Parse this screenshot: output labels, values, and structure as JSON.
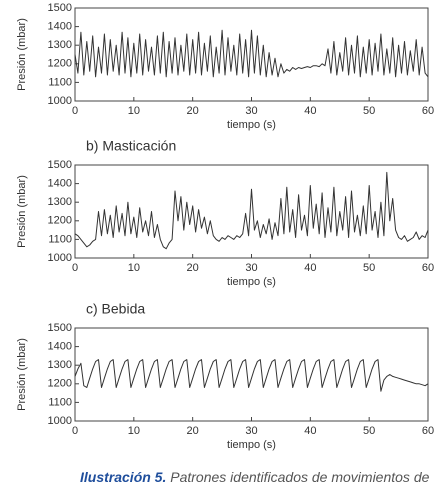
{
  "chart_data": [
    {
      "type": "line",
      "xlabel": "tiempo (s)",
      "ylabel": "Presión (mbar)",
      "color": "#333333",
      "xlim": [
        0,
        60
      ],
      "ylim": [
        1000,
        1500
      ],
      "xticks": [
        0,
        10,
        20,
        30,
        40,
        50,
        60
      ],
      "yticks": [
        1000,
        1100,
        1200,
        1300,
        1400,
        1500
      ],
      "x": [
        0,
        0.5,
        1,
        1.5,
        2,
        2.5,
        3,
        3.5,
        4,
        4.5,
        5,
        5.5,
        6,
        6.5,
        7,
        7.5,
        8,
        8.5,
        9,
        9.5,
        10,
        10.5,
        11,
        11.5,
        12,
        12.5,
        13,
        13.5,
        14,
        14.5,
        15,
        15.5,
        16,
        16.5,
        17,
        17.5,
        18,
        18.5,
        19,
        19.5,
        20,
        20.5,
        21,
        21.5,
        22,
        22.5,
        23,
        23.5,
        24,
        24.5,
        25,
        25.5,
        26,
        26.5,
        27,
        27.5,
        28,
        28.5,
        29,
        29.5,
        30,
        30.5,
        31,
        31.5,
        32,
        32.5,
        33,
        33.5,
        34,
        34.5,
        35,
        35.5,
        36,
        36.5,
        37,
        37.5,
        38,
        38.5,
        39,
        39.5,
        40,
        40.5,
        41,
        41.5,
        42,
        42.5,
        43,
        43.5,
        44,
        44.5,
        45,
        45.5,
        46,
        46.5,
        47,
        47.5,
        48,
        48.5,
        49,
        49.5,
        50,
        50.5,
        51,
        51.5,
        52,
        52.5,
        53,
        53.5,
        54,
        54.5,
        55,
        55.5,
        56,
        56.5,
        57,
        57.5,
        58,
        58.5,
        59,
        59.5,
        60
      ],
      "values": [
        1250,
        1150,
        1370,
        1140,
        1320,
        1160,
        1350,
        1130,
        1290,
        1150,
        1360,
        1140,
        1330,
        1160,
        1300,
        1140,
        1370,
        1150,
        1340,
        1130,
        1310,
        1150,
        1360,
        1140,
        1330,
        1160,
        1290,
        1140,
        1350,
        1150,
        1370,
        1130,
        1320,
        1150,
        1340,
        1140,
        1300,
        1160,
        1360,
        1140,
        1330,
        1150,
        1370,
        1140,
        1310,
        1160,
        1350,
        1130,
        1290,
        1150,
        1380,
        1140,
        1340,
        1160,
        1300,
        1140,
        1360,
        1150,
        1330,
        1130,
        1380,
        1150,
        1350,
        1140,
        1300,
        1130,
        1260,
        1140,
        1230,
        1130,
        1200,
        1150,
        1170,
        1160,
        1180,
        1170,
        1180,
        1175,
        1180,
        1185,
        1180,
        1190,
        1190,
        1185,
        1200,
        1190,
        1280,
        1150,
        1320,
        1140,
        1260,
        1160,
        1340,
        1140,
        1300,
        1150,
        1350,
        1130,
        1290,
        1150,
        1330,
        1140,
        1310,
        1160,
        1360,
        1140,
        1280,
        1150,
        1340,
        1130,
        1300,
        1150,
        1320,
        1140,
        1270,
        1160,
        1330,
        1140,
        1290,
        1150,
        1130
      ]
    },
    {
      "type": "line",
      "title": "b) Masticación",
      "xlabel": "tiempo (s)",
      "ylabel": "Presión (mbar)",
      "color": "#333333",
      "xlim": [
        0,
        60
      ],
      "ylim": [
        1000,
        1500
      ],
      "xticks": [
        0,
        10,
        20,
        30,
        40,
        50,
        60
      ],
      "yticks": [
        1000,
        1100,
        1200,
        1300,
        1400,
        1500
      ],
      "x": [
        0,
        0.5,
        1,
        1.5,
        2,
        2.5,
        3,
        3.5,
        4,
        4.5,
        5,
        5.5,
        6,
        6.5,
        7,
        7.5,
        8,
        8.5,
        9,
        9.5,
        10,
        10.5,
        11,
        11.5,
        12,
        12.5,
        13,
        13.5,
        14,
        14.5,
        15,
        15.5,
        16,
        16.5,
        17,
        17.5,
        18,
        18.5,
        19,
        19.5,
        20,
        20.5,
        21,
        21.5,
        22,
        22.5,
        23,
        23.5,
        24,
        24.5,
        25,
        25.5,
        26,
        26.5,
        27,
        27.5,
        28,
        28.5,
        29,
        29.5,
        30,
        30.5,
        31,
        31.5,
        32,
        32.5,
        33,
        33.5,
        34,
        34.5,
        35,
        35.5,
        36,
        36.5,
        37,
        37.5,
        38,
        38.5,
        39,
        39.5,
        40,
        40.5,
        41,
        41.5,
        42,
        42.5,
        43,
        43.5,
        44,
        44.5,
        45,
        45.5,
        46,
        46.5,
        47,
        47.5,
        48,
        48.5,
        49,
        49.5,
        50,
        50.5,
        51,
        51.5,
        52,
        52.5,
        53,
        53.5,
        54,
        54.5,
        55,
        55.5,
        56,
        56.5,
        57,
        57.5,
        58,
        58.5,
        59,
        59.5,
        60
      ],
      "values": [
        1130,
        1120,
        1100,
        1080,
        1060,
        1070,
        1090,
        1100,
        1250,
        1120,
        1260,
        1130,
        1230,
        1110,
        1280,
        1140,
        1240,
        1120,
        1300,
        1130,
        1220,
        1110,
        1270,
        1140,
        1200,
        1120,
        1250,
        1110,
        1180,
        1100,
        1060,
        1050,
        1080,
        1100,
        1360,
        1200,
        1330,
        1150,
        1300,
        1180,
        1280,
        1140,
        1260,
        1160,
        1220,
        1130,
        1200,
        1120,
        1100,
        1090,
        1110,
        1100,
        1120,
        1110,
        1100,
        1120,
        1110,
        1130,
        1240,
        1120,
        1370,
        1150,
        1200,
        1110,
        1180,
        1130,
        1210,
        1100,
        1190,
        1120,
        1320,
        1130,
        1380,
        1140,
        1260,
        1110,
        1340,
        1150,
        1230,
        1120,
        1390,
        1160,
        1290,
        1130,
        1350,
        1110,
        1270,
        1140,
        1380,
        1120,
        1250,
        1150,
        1330,
        1110,
        1360,
        1140,
        1230,
        1120,
        1280,
        1130,
        1390,
        1150,
        1250,
        1110,
        1300,
        1120,
        1460,
        1200,
        1320,
        1150,
        1110,
        1100,
        1120,
        1090,
        1100,
        1110,
        1140,
        1100,
        1120,
        1110,
        1150
      ]
    },
    {
      "type": "line",
      "title": "c) Bebida",
      "xlabel": "tiempo (s)",
      "ylabel": "Presión (mbar)",
      "color": "#333333",
      "xlim": [
        0,
        60
      ],
      "ylim": [
        1000,
        1500
      ],
      "xticks": [
        0,
        10,
        20,
        30,
        40,
        50,
        60
      ],
      "yticks": [
        1000,
        1100,
        1200,
        1300,
        1400,
        1500
      ],
      "x": [
        0,
        0.5,
        1,
        1.5,
        2,
        2.5,
        3,
        3.5,
        4,
        4.5,
        5,
        5.5,
        6,
        6.5,
        7,
        7.5,
        8,
        8.5,
        9,
        9.5,
        10,
        10.5,
        11,
        11.5,
        12,
        12.5,
        13,
        13.5,
        14,
        14.5,
        15,
        15.5,
        16,
        16.5,
        17,
        17.5,
        18,
        18.5,
        19,
        19.5,
        20,
        20.5,
        21,
        21.5,
        22,
        22.5,
        23,
        23.5,
        24,
        24.5,
        25,
        25.5,
        26,
        26.5,
        27,
        27.5,
        28,
        28.5,
        29,
        29.5,
        30,
        30.5,
        31,
        31.5,
        32,
        32.5,
        33,
        33.5,
        34,
        34.5,
        35,
        35.5,
        36,
        36.5,
        37,
        37.5,
        38,
        38.5,
        39,
        39.5,
        40,
        40.5,
        41,
        41.5,
        42,
        42.5,
        43,
        43.5,
        44,
        44.5,
        45,
        45.5,
        46,
        46.5,
        47,
        47.5,
        48,
        48.5,
        49,
        49.5,
        50,
        50.5,
        51,
        51.5,
        52,
        52.5,
        53,
        53.5,
        54,
        54.5,
        55,
        55.5,
        56,
        56.5,
        57,
        57.5,
        58,
        58.5,
        59,
        59.5,
        60
      ],
      "values": [
        1240,
        1280,
        1310,
        1190,
        1180,
        1230,
        1280,
        1320,
        1330,
        1180,
        1230,
        1280,
        1320,
        1330,
        1180,
        1230,
        1280,
        1320,
        1330,
        1180,
        1230,
        1280,
        1320,
        1330,
        1180,
        1230,
        1280,
        1320,
        1330,
        1180,
        1230,
        1280,
        1320,
        1330,
        1180,
        1230,
        1280,
        1320,
        1330,
        1180,
        1230,
        1280,
        1320,
        1330,
        1180,
        1230,
        1280,
        1320,
        1330,
        1180,
        1230,
        1280,
        1320,
        1330,
        1180,
        1230,
        1280,
        1320,
        1330,
        1180,
        1230,
        1280,
        1320,
        1330,
        1180,
        1230,
        1280,
        1320,
        1330,
        1180,
        1230,
        1280,
        1320,
        1330,
        1180,
        1230,
        1280,
        1320,
        1330,
        1180,
        1230,
        1280,
        1320,
        1330,
        1180,
        1230,
        1280,
        1320,
        1330,
        1180,
        1230,
        1280,
        1320,
        1330,
        1180,
        1230,
        1280,
        1320,
        1330,
        1180,
        1230,
        1280,
        1320,
        1330,
        1160,
        1220,
        1240,
        1250,
        1240,
        1235,
        1230,
        1225,
        1220,
        1215,
        1210,
        1205,
        1200,
        1200,
        1195,
        1190,
        1200
      ]
    }
  ],
  "caption": {
    "label": "Ilustración 5.",
    "text": "Patrones identificados de movimientos de"
  }
}
